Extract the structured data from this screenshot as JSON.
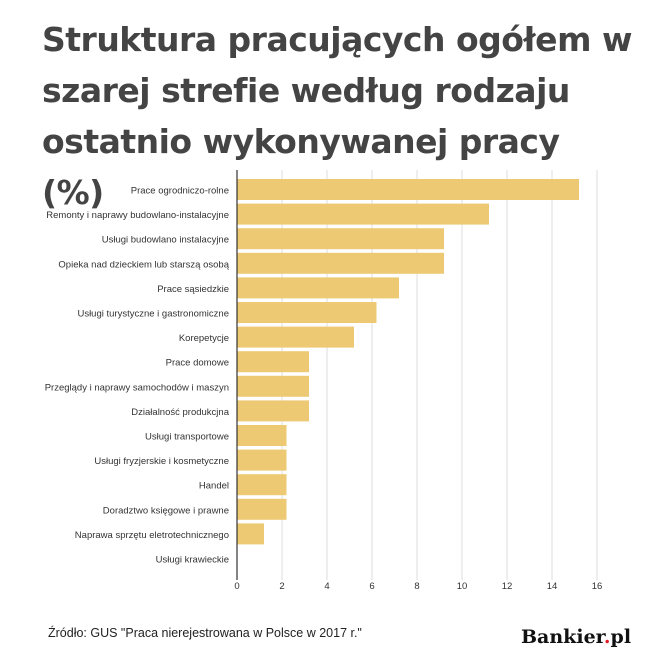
{
  "title": "Struktura pracujących ogółem w szarej strefie według rodzaju ostatnio wykonywanej pracy (%)",
  "source": "Źródło: GUS \"Praca nierejestrowana w Polsce w 2017 r.\"",
  "logo": {
    "text_main": "Bankier",
    "text_dot": ".",
    "text_suffix": "pl"
  },
  "colors": {
    "bar": "#edc974",
    "grid": "#dddddd",
    "axis": "#333333",
    "logo_dot": "#e21b23"
  },
  "chart_data": {
    "type": "bar",
    "orientation": "horizontal",
    "title": "Struktura pracujących ogółem w szarej strefie według rodzaju ostatnio wykonywanej pracy (%)",
    "categories": [
      "Prace ogrodniczo-rolne",
      "Remonty i naprawy budowlano-instalacyjne",
      "Usługi budowlano instalacyjne",
      "Opieka nad dzieckiem lub starszą osobą",
      "Prace sąsiedzkie",
      "Usługi turystyczne i gastronomiczne",
      "Korepetycje",
      "Prace domowe",
      "Przeglądy i naprawy samochodów i maszyn",
      "Działalność produkcjna",
      "Usługi transportowe",
      "Usługi fryzjerskie i kosmetyczne",
      "Handel",
      "Doradztwo księgowe i prawne",
      "Naprawa sprzętu eletrotechnicznego",
      "Usługi krawieckie"
    ],
    "values": [
      15.2,
      11.2,
      9.2,
      9.2,
      7.2,
      6.2,
      5.2,
      3.2,
      3.2,
      3.2,
      2.2,
      2.2,
      2.2,
      2.2,
      1.2,
      0
    ],
    "xlim": [
      0,
      16
    ],
    "xticks": [
      0,
      2,
      4,
      6,
      8,
      10,
      12,
      14,
      16
    ],
    "grid": true,
    "legend": "none"
  }
}
